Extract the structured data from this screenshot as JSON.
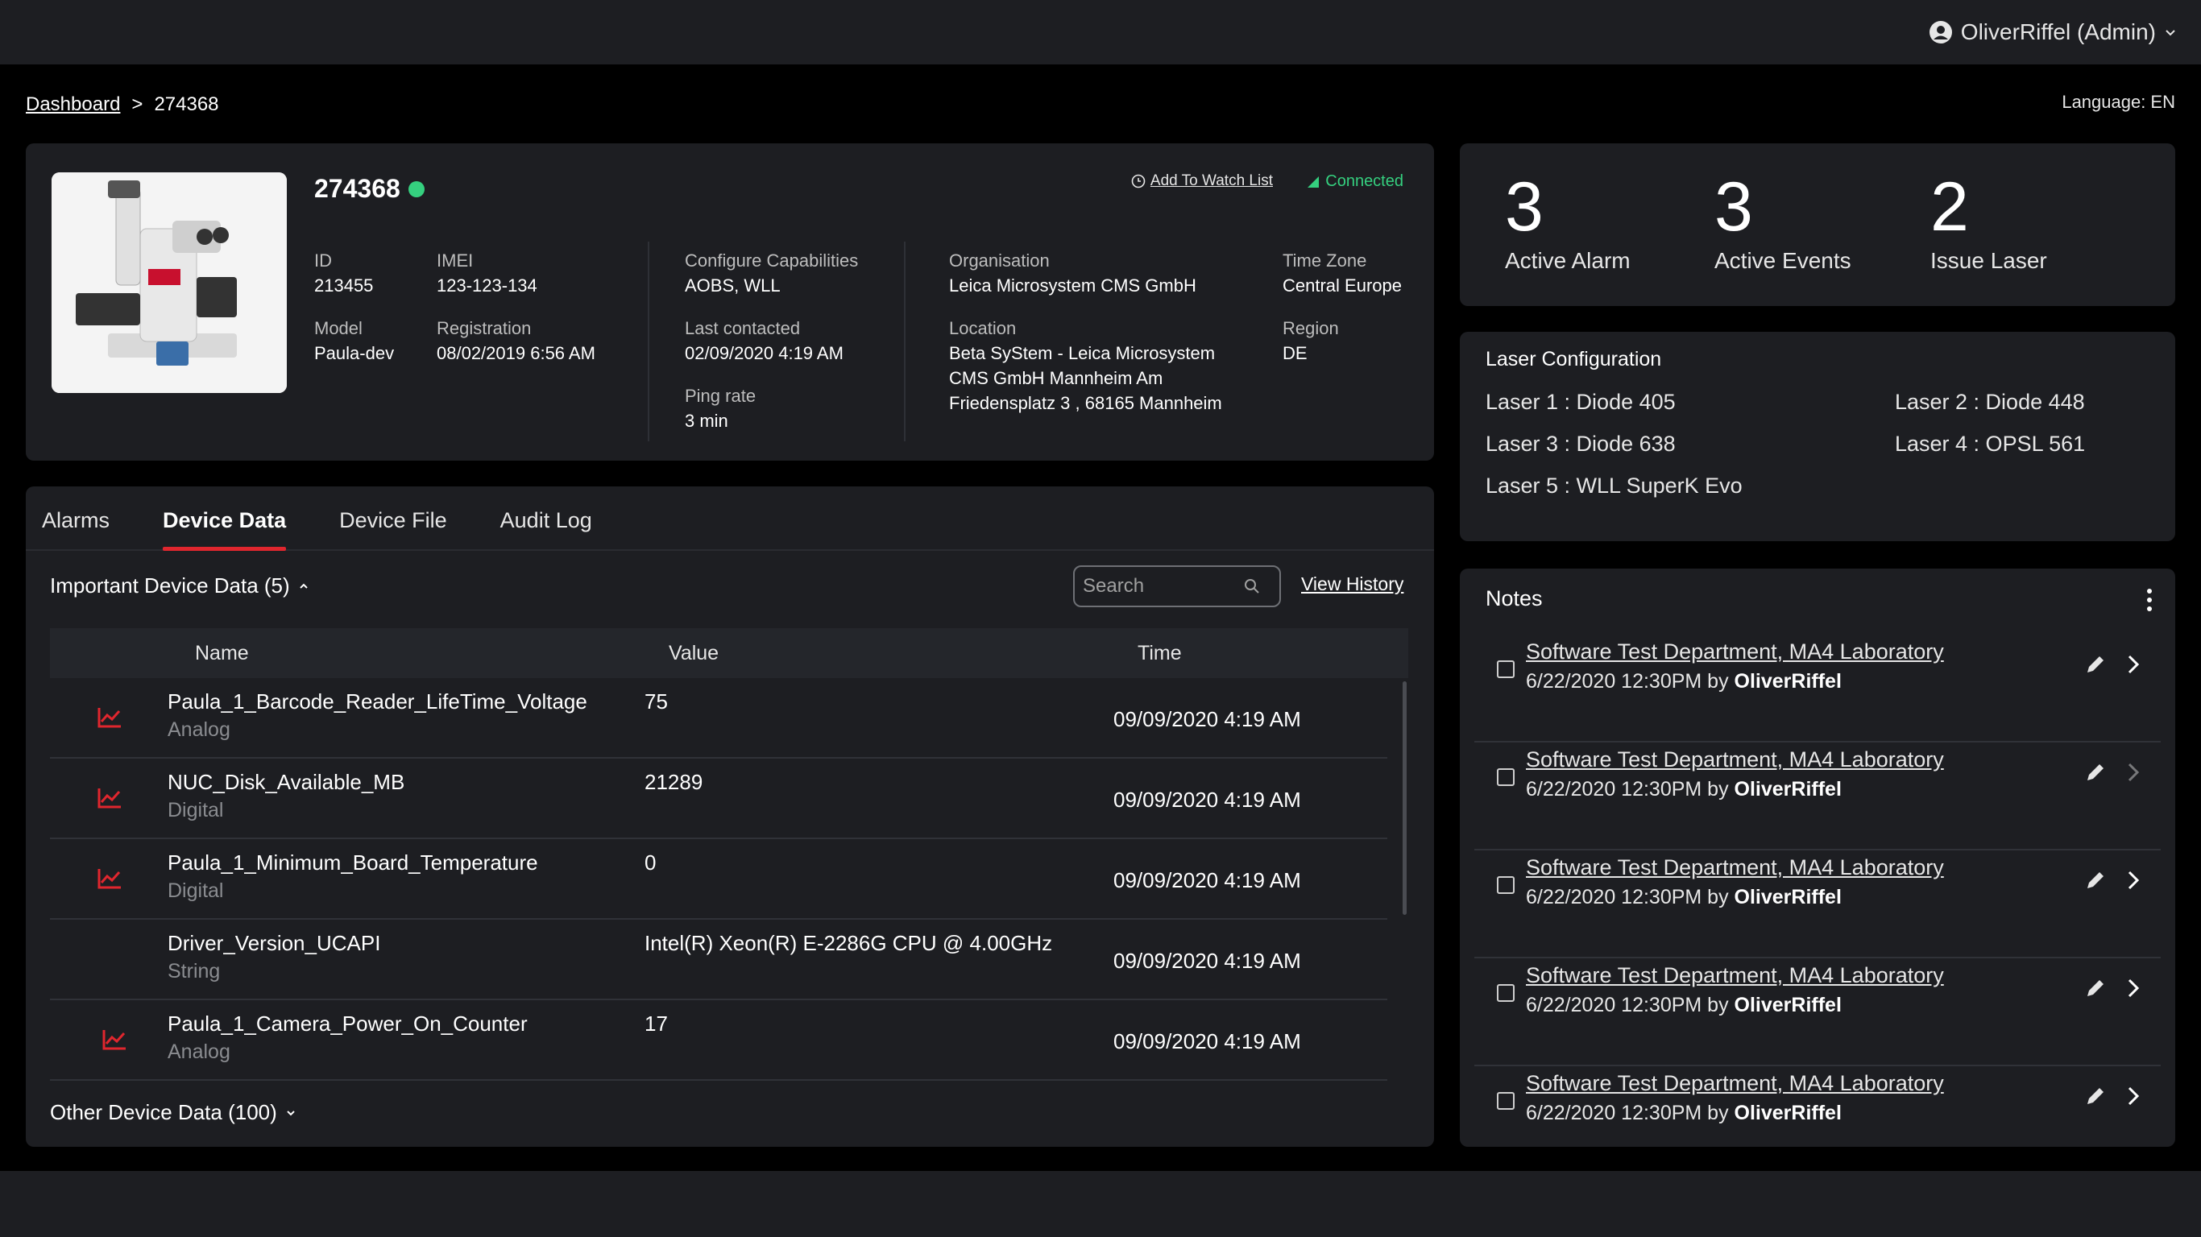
{
  "header": {
    "user_label": "OliverRiffel (Admin)"
  },
  "breadcrumb": {
    "root": "Dashboard",
    "separator": ">",
    "current": "274368"
  },
  "language": "Language: EN",
  "device": {
    "title": "274368",
    "watchlist_label": "Add To Watch List",
    "connection_status": "Connected",
    "fields": {
      "id_label": "ID",
      "id_value": "213455",
      "imei_label": "IMEI",
      "imei_value": "123-123-134",
      "model_label": "Model",
      "model_value": "Paula-dev",
      "registration_label": "Registration",
      "registration_value": "08/02/2019 6:56 AM",
      "capabilities_label": "Configure Capabilities",
      "capabilities_value": "AOBS, WLL",
      "last_contacted_label": "Last contacted",
      "last_contacted_value": "02/09/2020 4:19 AM",
      "ping_label": "Ping rate",
      "ping_value": "3 min",
      "org_label": "Organisation",
      "org_value": "Leica Microsystem  CMS GmbH",
      "location_label": "Location",
      "location_line1": "Beta SyStem - Leica  Microsystem",
      "location_line2": "CMS GmbH Mannheim Am",
      "location_line3": "Friedensplatz 3 , 68165 Mannheim",
      "timezone_label": "Time Zone",
      "timezone_value": "Central Europe",
      "region_label": "Region",
      "region_value": "DE"
    }
  },
  "stats": {
    "alarm_count": "3",
    "alarm_label": "Active Alarm",
    "events_count": "3",
    "events_label": "Active Events",
    "issue_count": "2",
    "issue_label": "Issue Laser"
  },
  "laser": {
    "title": "Laser Configuration",
    "items": [
      "Laser 1 : Diode 405",
      "Laser 2 : Diode 448",
      "Laser 3 : Diode 638",
      "Laser 4 : OPSL 561",
      "Laser 5 : WLL SuperK Evo"
    ]
  },
  "tabs": [
    "Alarms",
    "Device Data",
    "Device File",
    "Audit Log"
  ],
  "device_data": {
    "important_label": "Important Device Data (5)",
    "search_placeholder": "Search",
    "view_history": "View History",
    "columns": {
      "name": "Name",
      "value": "Value",
      "time": "Time"
    },
    "rows": [
      {
        "name": "Paula_1_Barcode_Reader_LifeTime_Voltage",
        "type": "Analog",
        "value": "75",
        "time": "09/09/2020 4:19 AM"
      },
      {
        "name": "NUC_Disk_Available_MB",
        "type": "Digital",
        "value": "21289",
        "time": "09/09/2020 4:19 AM"
      },
      {
        "name": "Paula_1_Minimum_Board_Temperature",
        "type": "Digital",
        "value": "0",
        "time": "09/09/2020 4:19 AM"
      },
      {
        "name": "Driver_Version_UCAPI",
        "type": "String",
        "value": "Intel(R) Xeon(R) E-2286G CPU @ 4.00GHz",
        "time": "09/09/2020 4:19 AM"
      },
      {
        "name": "Paula_1_Camera_Power_On_Counter",
        "type": "Analog",
        "value": "17",
        "time": "09/09/2020 4:19 AM"
      }
    ],
    "other_label": "Other Device Data (100)"
  },
  "notes": {
    "title": "Notes",
    "items": [
      {
        "title": "Software Test Department, MA4 Laboratory",
        "date": "6/22/2020 12:30PM by",
        "author": "OliverRiffel"
      },
      {
        "title": "Software Test Department, MA4 Laboratory",
        "date": "6/22/2020 12:30PM by",
        "author": "OliverRiffel"
      },
      {
        "title": "Software Test Department, MA4 Laboratory",
        "date": "6/22/2020 12:30PM by",
        "author": "OliverRiffel"
      },
      {
        "title": "Software Test Department, MA4 Laboratory",
        "date": "6/22/2020 12:30PM by",
        "author": "OliverRiffel"
      },
      {
        "title": "Software Test Department, MA4 Laboratory",
        "date": "6/22/2020 12:30PM by",
        "author": "OliverRiffel"
      }
    ]
  },
  "colors": {
    "accent_red": "#e0262e",
    "status_green": "#35d07f",
    "panel_bg": "#1d1e22",
    "page_bg": "#000000"
  }
}
